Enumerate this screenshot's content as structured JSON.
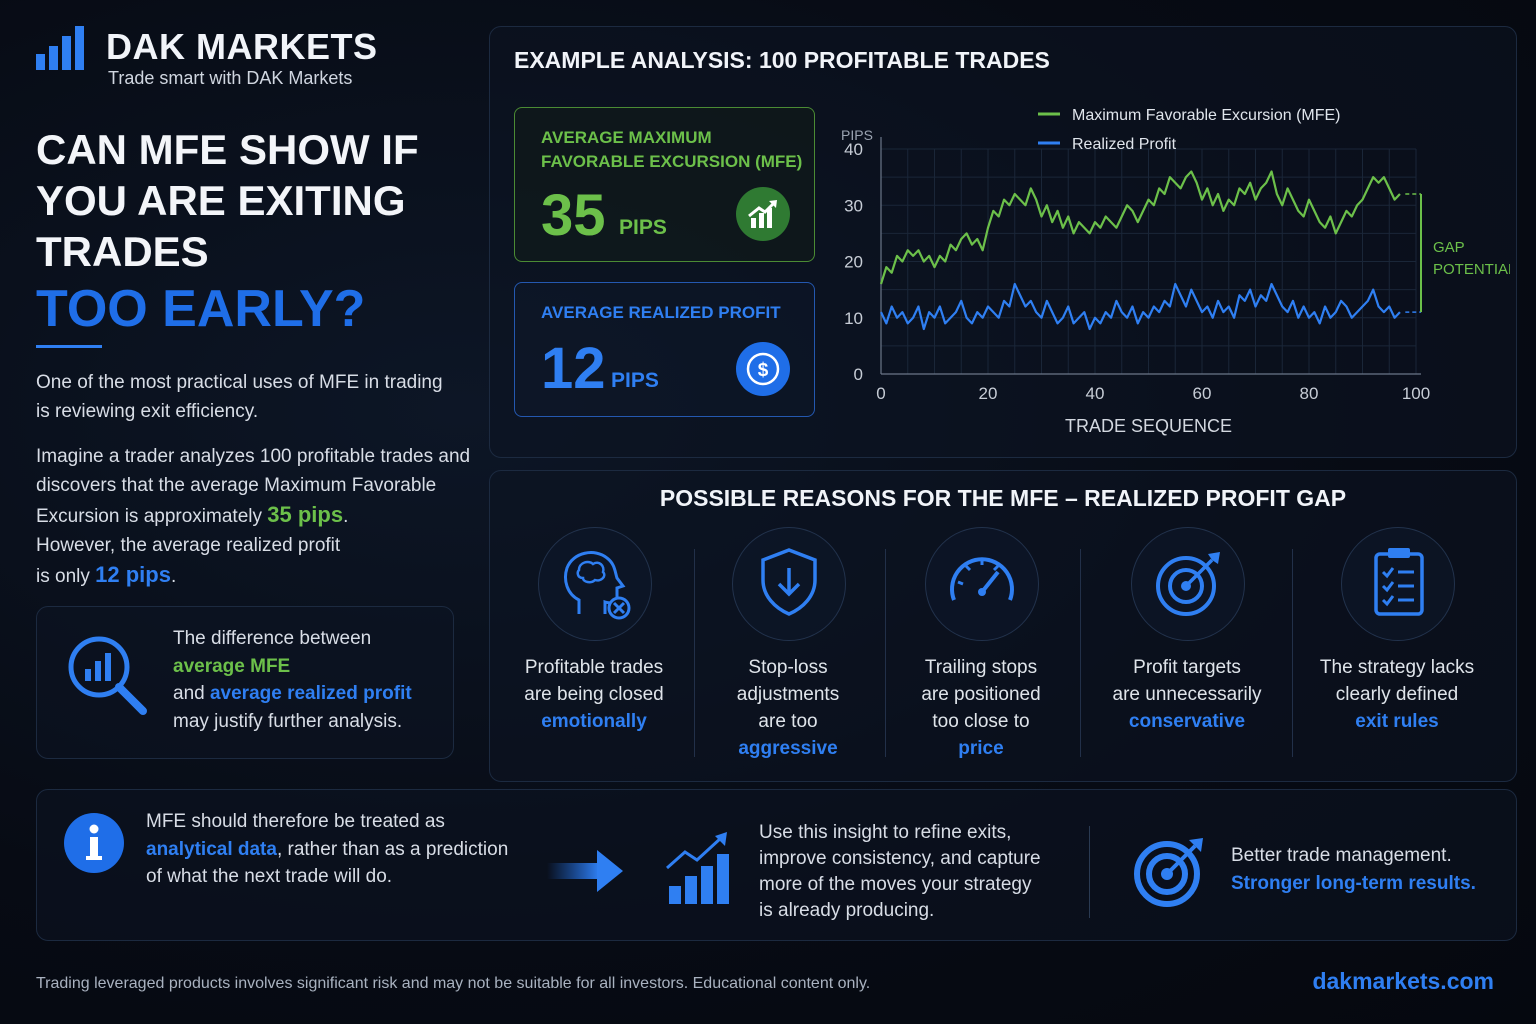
{
  "brand": {
    "name": "DAK MARKETS",
    "tagline": "Trade smart with DAK Markets"
  },
  "hero": {
    "line1": "CAN MFE SHOW IF",
    "line2": "YOU ARE EXITING",
    "line3": "TRADES",
    "highlight": "TOO EARLY?"
  },
  "intro": {
    "text": "One of the most practical uses of MFE in trading is reviewing exit efficiency."
  },
  "scenario": {
    "a": "Imagine a trader analyzes 100 profitable trades and",
    "b": "discovers that the average Maximum Favorable",
    "c": "Excursion is approximately",
    "mfe": "35 pips",
    "dot1": ".",
    "d": "However, the average realized profit",
    "e": "is only",
    "profit": "12 pips",
    "dot2": "."
  },
  "callout": {
    "l1": "The difference between",
    "mfe": "average MFE",
    "and": "and",
    "profit": "average realized profit",
    "l4": "may justify further analysis."
  },
  "analysis": {
    "title": "EXAMPLE ANALYSIS: 100 PROFITABLE TRADES"
  },
  "stat_mfe": {
    "label1": "AVERAGE MAXIMUM",
    "label2": "FAVORABLE EXCURSION (MFE)",
    "value": "35",
    "unit": "PIPS"
  },
  "stat_profit": {
    "label": "AVERAGE REALIZED PROFIT",
    "value": "12",
    "unit": "PIPS"
  },
  "reasons": {
    "title": "POSSIBLE REASONS FOR THE MFE – REALIZED PROFIT GAP",
    "items": [
      {
        "a": "Profitable trades",
        "b": "are being closed",
        "c": "",
        "h": "emotionally",
        "icon": "head-x-icon"
      },
      {
        "a": "Stop-loss",
        "b": "adjustments",
        "c": "are too",
        "h": "aggressive",
        "icon": "shield-arrow-icon"
      },
      {
        "a": "Trailing stops",
        "b": "are positioned",
        "c": "too close to",
        "h": "price",
        "icon": "gauge-icon"
      },
      {
        "a": "Profit targets",
        "b": "are unnecessarily",
        "c": "",
        "h": "conservative",
        "icon": "target-icon"
      },
      {
        "a": "The strategy lacks",
        "b": "clearly defined",
        "c": "",
        "h": "exit rules",
        "icon": "clipboard-icon"
      }
    ]
  },
  "bottom": {
    "info": {
      "a": "MFE should therefore be treated as",
      "h": "analytical data",
      "b": ", rather than as a prediction",
      "c": "of what the next trade will do."
    },
    "insight": {
      "a": "Use this insight to refine exits,",
      "b": "improve consistency, and capture",
      "c": "more of the moves your strategy",
      "d": "is already producing."
    },
    "result": {
      "a": "Better trade management.",
      "h": "Stronger long-term results."
    }
  },
  "footer": {
    "disclaimer": "Trading leveraged products involves significant risk and may not be suitable for all investors. Educational content only.",
    "url": "dakmarkets.com"
  },
  "colors": {
    "accent_blue": "#2f7ff2",
    "accent_green": "#6cc04a",
    "background": "#070c16"
  },
  "chart_data": {
    "type": "line",
    "ylabel": "PIPS",
    "xlabel": "TRADE SEQUENCE",
    "x_ticks": [
      0,
      20,
      40,
      60,
      80,
      100
    ],
    "y_ticks": [
      0,
      10,
      20,
      30,
      40
    ],
    "xlim": [
      0,
      100
    ],
    "ylim": [
      0,
      40
    ],
    "grid": true,
    "legend": "top",
    "annotation": "GAP POTENTIAL",
    "series": [
      {
        "name": "Maximum Favorable Excursion (MFE)",
        "color": "#6cc04a",
        "values": [
          16,
          19,
          18,
          21,
          20,
          22,
          21,
          22,
          20,
          21,
          19,
          21,
          20,
          23,
          22,
          24,
          25,
          23,
          24,
          22,
          26,
          29,
          28,
          31,
          30,
          32,
          31,
          30,
          33,
          31,
          28,
          30,
          27,
          29,
          26,
          28,
          25,
          27,
          26,
          25,
          27,
          26,
          28,
          27,
          26,
          28,
          30,
          29,
          27,
          29,
          31,
          30,
          33,
          32,
          35,
          34,
          33,
          35,
          36,
          34,
          31,
          33,
          30,
          32,
          29,
          31,
          30,
          33,
          32,
          34,
          31,
          33,
          34,
          36,
          32,
          30,
          33,
          31,
          29,
          28,
          31,
          29,
          27,
          26,
          28,
          25,
          27,
          29,
          28,
          30,
          31,
          33,
          35,
          34,
          35,
          33,
          31,
          32
        ]
      },
      {
        "name": "Realized Profit",
        "color": "#2f7ff2",
        "values": [
          11,
          9,
          12,
          10,
          11,
          9,
          10,
          12,
          8,
          11,
          10,
          12,
          9,
          10,
          11,
          13,
          10,
          9,
          11,
          10,
          12,
          11,
          10,
          13,
          12,
          16,
          14,
          12,
          13,
          11,
          10,
          13,
          11,
          9,
          10,
          12,
          9,
          10,
          11,
          8,
          10,
          9,
          11,
          10,
          13,
          11,
          10,
          12,
          9,
          11,
          10,
          12,
          11,
          13,
          12,
          16,
          14,
          12,
          15,
          13,
          11,
          12,
          10,
          13,
          11,
          12,
          10,
          14,
          13,
          15,
          12,
          14,
          13,
          16,
          14,
          12,
          11,
          13,
          10,
          12,
          10,
          11,
          9,
          12,
          10,
          11,
          13,
          12,
          10,
          11,
          12,
          13,
          15,
          12,
          11,
          12,
          10,
          11
        ]
      }
    ]
  }
}
